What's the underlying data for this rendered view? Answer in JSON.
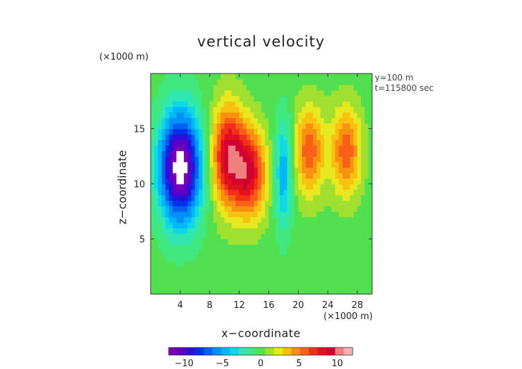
{
  "chart_data": {
    "type": "heatmap",
    "title": "vertical velocity",
    "xlabel": "x−coordinate",
    "ylabel": "z−coordinate",
    "x_unit": "(×1000 m)",
    "y_unit": "(×1000 m)",
    "annotations": [
      "y=100 m",
      "t=115800 sec"
    ],
    "xlim": [
      0,
      30
    ],
    "ylim": [
      0,
      20
    ],
    "x_ticks": [
      4,
      8,
      12,
      16,
      20,
      24,
      28
    ],
    "y_ticks": [
      5,
      10,
      15
    ],
    "colorbar": {
      "range": [
        -12,
        12
      ],
      "ticks": [
        -10,
        -5,
        0,
        5,
        10
      ],
      "colors": [
        "#7a00b0",
        "#5a00c8",
        "#2a10d8",
        "#0030e8",
        "#0060f0",
        "#0090f8",
        "#00b8f8",
        "#10d8e8",
        "#30e8b0",
        "#40e880",
        "#50e050",
        "#a0e030",
        "#e8e820",
        "#f8c010",
        "#f89010",
        "#f86018",
        "#f03018",
        "#e01020",
        "#d00030",
        "#f08080",
        "#f8b0b0"
      ]
    },
    "features": [
      {
        "x": 4.0,
        "z": 11.5,
        "sx": 2.8,
        "sz": 5.0,
        "w": -13
      },
      {
        "x": 10.5,
        "z": 12.5,
        "sx": 2.2,
        "sz": 4.5,
        "w": 9
      },
      {
        "x": 13.5,
        "z": 11.0,
        "sx": 2.2,
        "sz": 4.0,
        "w": 8
      },
      {
        "x": 18.0,
        "z": 11.0,
        "sx": 1.2,
        "sz": 5.0,
        "w": -5
      },
      {
        "x": 21.5,
        "z": 13.0,
        "sx": 2.0,
        "sz": 4.0,
        "w": 6
      },
      {
        "x": 26.5,
        "z": 13.0,
        "sx": 2.0,
        "sz": 4.0,
        "w": 6
      }
    ]
  }
}
